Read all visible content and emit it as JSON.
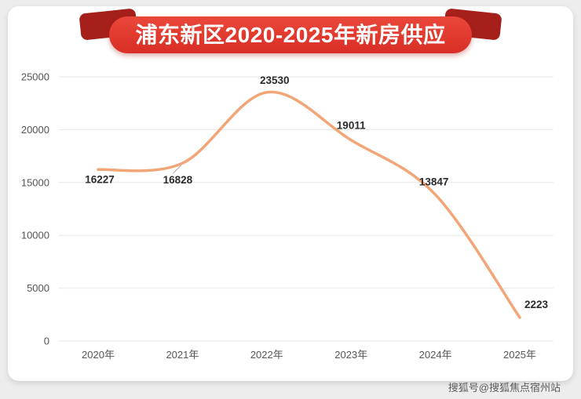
{
  "banner": {
    "title": "浦东新区2020-2025年新房供应",
    "ribbon_color": "#D92E25",
    "ribbon_dark_color": "#A6201B"
  },
  "watermark": {
    "text": "搜狐号@搜狐焦点宿州站"
  },
  "chart_data": {
    "type": "line",
    "title": "浦东新区2020-2025年新房供应",
    "categories": [
      "2020年",
      "2021年",
      "2022年",
      "2023年",
      "2024年",
      "2025年"
    ],
    "values": [
      16227,
      16828,
      23530,
      19011,
      13847,
      2223
    ],
    "series_name": "新房供应",
    "xlabel": "",
    "ylabel": "",
    "ylim": [
      0,
      25000
    ],
    "y_ticks": [
      0,
      5000,
      10000,
      15000,
      20000,
      25000
    ],
    "grid": "horizontal",
    "smooth": true,
    "data_labels": true,
    "line_color": "#F2A678",
    "legend_position": "none"
  }
}
